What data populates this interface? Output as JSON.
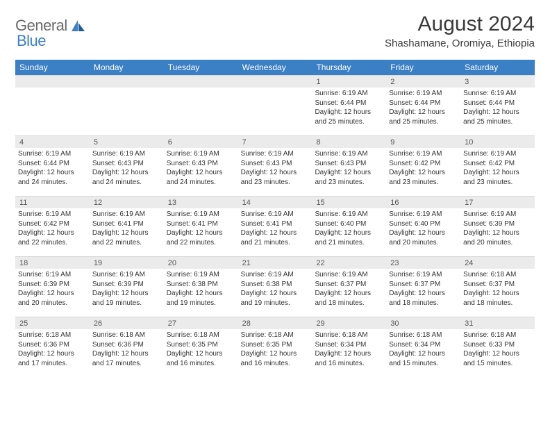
{
  "logo": {
    "general": "General",
    "blue": "Blue"
  },
  "title": "August 2024",
  "subtitle": "Shashamane, Oromiya, Ethiopia",
  "colors": {
    "header_bg": "#3b7fc4",
    "header_text": "#ffffff",
    "daynum_bg": "#ebebeb",
    "border": "#d8d8d8",
    "background": "#ffffff",
    "title_color": "#3a3a3a",
    "body_text": "#333333"
  },
  "weekdays": [
    "Sunday",
    "Monday",
    "Tuesday",
    "Wednesday",
    "Thursday",
    "Friday",
    "Saturday"
  ],
  "weeks": [
    [
      null,
      null,
      null,
      null,
      {
        "n": "1",
        "sr": "6:19 AM",
        "ss": "6:44 PM",
        "dh": "12",
        "dm": "25"
      },
      {
        "n": "2",
        "sr": "6:19 AM",
        "ss": "6:44 PM",
        "dh": "12",
        "dm": "25"
      },
      {
        "n": "3",
        "sr": "6:19 AM",
        "ss": "6:44 PM",
        "dh": "12",
        "dm": "25"
      }
    ],
    [
      {
        "n": "4",
        "sr": "6:19 AM",
        "ss": "6:44 PM",
        "dh": "12",
        "dm": "24"
      },
      {
        "n": "5",
        "sr": "6:19 AM",
        "ss": "6:43 PM",
        "dh": "12",
        "dm": "24"
      },
      {
        "n": "6",
        "sr": "6:19 AM",
        "ss": "6:43 PM",
        "dh": "12",
        "dm": "24"
      },
      {
        "n": "7",
        "sr": "6:19 AM",
        "ss": "6:43 PM",
        "dh": "12",
        "dm": "23"
      },
      {
        "n": "8",
        "sr": "6:19 AM",
        "ss": "6:43 PM",
        "dh": "12",
        "dm": "23"
      },
      {
        "n": "9",
        "sr": "6:19 AM",
        "ss": "6:42 PM",
        "dh": "12",
        "dm": "23"
      },
      {
        "n": "10",
        "sr": "6:19 AM",
        "ss": "6:42 PM",
        "dh": "12",
        "dm": "23"
      }
    ],
    [
      {
        "n": "11",
        "sr": "6:19 AM",
        "ss": "6:42 PM",
        "dh": "12",
        "dm": "22"
      },
      {
        "n": "12",
        "sr": "6:19 AM",
        "ss": "6:41 PM",
        "dh": "12",
        "dm": "22"
      },
      {
        "n": "13",
        "sr": "6:19 AM",
        "ss": "6:41 PM",
        "dh": "12",
        "dm": "22"
      },
      {
        "n": "14",
        "sr": "6:19 AM",
        "ss": "6:41 PM",
        "dh": "12",
        "dm": "21"
      },
      {
        "n": "15",
        "sr": "6:19 AM",
        "ss": "6:40 PM",
        "dh": "12",
        "dm": "21"
      },
      {
        "n": "16",
        "sr": "6:19 AM",
        "ss": "6:40 PM",
        "dh": "12",
        "dm": "20"
      },
      {
        "n": "17",
        "sr": "6:19 AM",
        "ss": "6:39 PM",
        "dh": "12",
        "dm": "20"
      }
    ],
    [
      {
        "n": "18",
        "sr": "6:19 AM",
        "ss": "6:39 PM",
        "dh": "12",
        "dm": "20"
      },
      {
        "n": "19",
        "sr": "6:19 AM",
        "ss": "6:39 PM",
        "dh": "12",
        "dm": "19"
      },
      {
        "n": "20",
        "sr": "6:19 AM",
        "ss": "6:38 PM",
        "dh": "12",
        "dm": "19"
      },
      {
        "n": "21",
        "sr": "6:19 AM",
        "ss": "6:38 PM",
        "dh": "12",
        "dm": "19"
      },
      {
        "n": "22",
        "sr": "6:19 AM",
        "ss": "6:37 PM",
        "dh": "12",
        "dm": "18"
      },
      {
        "n": "23",
        "sr": "6:19 AM",
        "ss": "6:37 PM",
        "dh": "12",
        "dm": "18"
      },
      {
        "n": "24",
        "sr": "6:18 AM",
        "ss": "6:37 PM",
        "dh": "12",
        "dm": "18"
      }
    ],
    [
      {
        "n": "25",
        "sr": "6:18 AM",
        "ss": "6:36 PM",
        "dh": "12",
        "dm": "17"
      },
      {
        "n": "26",
        "sr": "6:18 AM",
        "ss": "6:36 PM",
        "dh": "12",
        "dm": "17"
      },
      {
        "n": "27",
        "sr": "6:18 AM",
        "ss": "6:35 PM",
        "dh": "12",
        "dm": "16"
      },
      {
        "n": "28",
        "sr": "6:18 AM",
        "ss": "6:35 PM",
        "dh": "12",
        "dm": "16"
      },
      {
        "n": "29",
        "sr": "6:18 AM",
        "ss": "6:34 PM",
        "dh": "12",
        "dm": "16"
      },
      {
        "n": "30",
        "sr": "6:18 AM",
        "ss": "6:34 PM",
        "dh": "12",
        "dm": "15"
      },
      {
        "n": "31",
        "sr": "6:18 AM",
        "ss": "6:33 PM",
        "dh": "12",
        "dm": "15"
      }
    ]
  ],
  "labels": {
    "sunrise": "Sunrise:",
    "sunset": "Sunset:",
    "daylight_prefix": "Daylight:",
    "hours_word": "hours",
    "and_word": "and",
    "minutes_word": "minutes."
  }
}
